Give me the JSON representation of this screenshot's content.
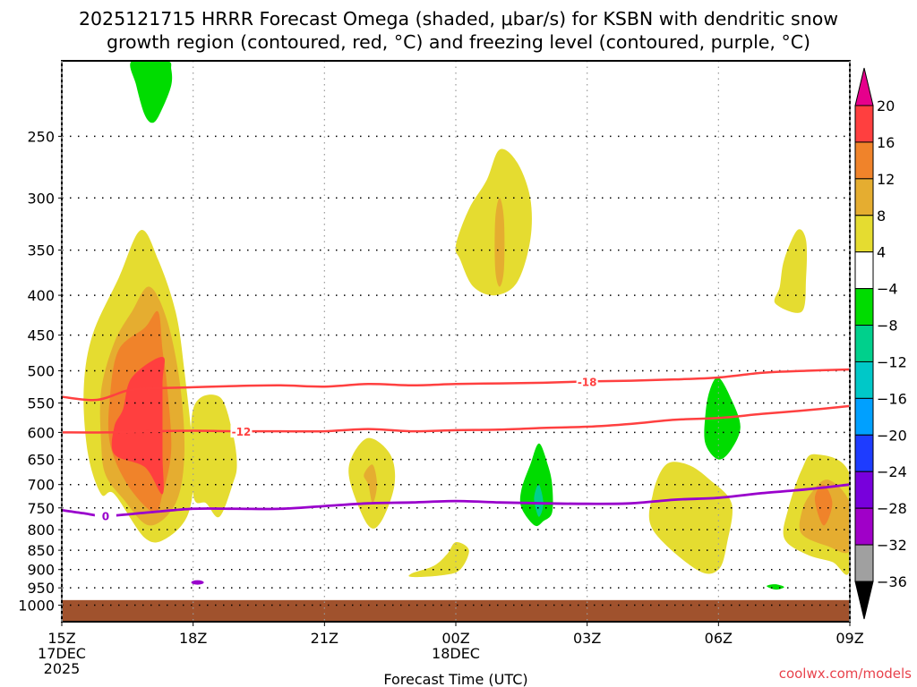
{
  "chart_data": {
    "type": "heatmap",
    "title_lines": [
      "2025121715 HRRR Forecast Omega (shaded, μbar/s) for KSBN with dendritic snow",
      "growth region (contoured, red, °C) and freezing level (contoured, purple, °C)"
    ],
    "xlabel": "Forecast Time (UTC)",
    "ylabel": "",
    "credit": "coolwx.com/models",
    "x_range_hours": [
      0,
      18
    ],
    "x_ticks": [
      {
        "hour": 0,
        "lines": [
          "15Z",
          "17DEC",
          "2025"
        ]
      },
      {
        "hour": 3,
        "lines": [
          "18Z"
        ]
      },
      {
        "hour": 6,
        "lines": [
          "21Z"
        ]
      },
      {
        "hour": 9,
        "lines": [
          "00Z",
          "18DEC"
        ]
      },
      {
        "hour": 12,
        "lines": [
          "03Z"
        ]
      },
      {
        "hour": 15,
        "lines": [
          "06Z"
        ]
      },
      {
        "hour": 18,
        "lines": [
          "09Z"
        ]
      }
    ],
    "y_axis": "pressure (mb), log-scaled, inverted",
    "y_range": [
      200,
      1050
    ],
    "y_ticks": [
      250,
      300,
      350,
      400,
      450,
      500,
      550,
      600,
      650,
      700,
      750,
      800,
      850,
      900,
      950,
      1000
    ],
    "grid": true,
    "colorbar": {
      "placement": "right",
      "levels": [
        20,
        16,
        12,
        8,
        4,
        -4,
        -8,
        -12,
        -16,
        -20,
        -24,
        -28,
        -32,
        -36
      ],
      "colors": [
        "#ff3f3f",
        "#f0832a",
        "#e5ad30",
        "#e5dc30",
        "#ffffff",
        "#00dc00",
        "#00d08c",
        "#00c8c8",
        "#00a0ff",
        "#1e3cff",
        "#7800dc",
        "#a000c8",
        "#a0a0a0"
      ],
      "over_color": "#e6008c",
      "under_color": "#000000"
    },
    "omega_regions": [
      {
        "name": "main-updraft",
        "level_color": "#e5dc30",
        "points": [
          [
            1.2,
            720
          ],
          [
            1.9,
            820
          ],
          [
            2.4,
            820
          ],
          [
            2.9,
            760
          ],
          [
            3.0,
            650
          ],
          [
            2.8,
            500
          ],
          [
            2.6,
            420
          ],
          [
            2.2,
            360
          ],
          [
            1.8,
            330
          ],
          [
            1.3,
            380
          ],
          [
            0.7,
            450
          ],
          [
            0.5,
            530
          ],
          [
            0.6,
            640
          ],
          [
            0.9,
            720
          ]
        ]
      },
      {
        "name": "main-updraft",
        "level_color": "#e5dc30",
        "points": [
          [
            3.0,
            560
          ],
          [
            3.6,
            540
          ],
          [
            3.9,
            600
          ],
          [
            4.0,
            660
          ],
          [
            3.9,
            700
          ],
          [
            3.6,
            770
          ],
          [
            3.3,
            740
          ],
          [
            3.0,
            720
          ]
        ]
      },
      {
        "name": "main-updraft",
        "level_color": "#e5ad30",
        "points": [
          [
            1.4,
            730
          ],
          [
            2.0,
            790
          ],
          [
            2.6,
            740
          ],
          [
            2.8,
            640
          ],
          [
            2.7,
            520
          ],
          [
            2.4,
            430
          ],
          [
            2.0,
            390
          ],
          [
            1.6,
            420
          ],
          [
            1.2,
            460
          ],
          [
            0.9,
            530
          ],
          [
            0.9,
            620
          ],
          [
            1.0,
            680
          ]
        ]
      },
      {
        "name": "main-updraft",
        "level_color": "#f0832a",
        "points": [
          [
            1.5,
            700
          ],
          [
            2.1,
            760
          ],
          [
            2.3,
            720
          ],
          [
            2.5,
            630
          ],
          [
            2.4,
            520
          ],
          [
            2.3,
            470
          ],
          [
            2.2,
            420
          ],
          [
            1.9,
            440
          ],
          [
            1.3,
            470
          ],
          [
            1.1,
            540
          ],
          [
            1.1,
            620
          ]
        ]
      },
      {
        "name": "main-updraft",
        "level_color": "#ff3f3f",
        "points": [
          [
            1.2,
            640
          ],
          [
            1.9,
            665
          ],
          [
            2.3,
            720
          ],
          [
            2.3,
            640
          ],
          [
            2.3,
            520
          ],
          [
            2.3,
            480
          ],
          [
            1.6,
            510
          ],
          [
            1.4,
            560
          ],
          [
            1.2,
            590
          ]
        ]
      },
      {
        "name": "top-green",
        "level_color": "#00dc00",
        "points": [
          [
            1.6,
            200
          ],
          [
            2.4,
            200
          ],
          [
            2.5,
            205
          ],
          [
            2.5,
            215
          ],
          [
            2.3,
            230
          ],
          [
            2.1,
            240
          ],
          [
            1.9,
            235
          ],
          [
            1.7,
            215
          ]
        ]
      },
      {
        "name": "mid-upper-yellow",
        "level_color": "#e5dc30",
        "points": [
          [
            9.1,
            360
          ],
          [
            9.4,
            390
          ],
          [
            9.9,
            400
          ],
          [
            10.4,
            385
          ],
          [
            10.7,
            340
          ],
          [
            10.7,
            300
          ],
          [
            10.4,
            270
          ],
          [
            10.0,
            260
          ],
          [
            9.7,
            285
          ],
          [
            9.3,
            310
          ],
          [
            9.0,
            345
          ]
        ]
      },
      {
        "name": "mid-upper-orange",
        "level_color": "#e5ad30",
        "points": [
          [
            9.9,
            370
          ],
          [
            10.0,
            390
          ],
          [
            10.1,
            370
          ],
          [
            10.1,
            320
          ],
          [
            10.0,
            300
          ],
          [
            9.9,
            320
          ]
        ]
      },
      {
        "name": "yellow-21z",
        "level_color": "#e5dc30",
        "points": [
          [
            6.6,
            700
          ],
          [
            7.0,
            790
          ],
          [
            7.3,
            780
          ],
          [
            7.6,
            700
          ],
          [
            7.5,
            640
          ],
          [
            7.0,
            610
          ],
          [
            6.6,
            650
          ]
        ]
      },
      {
        "name": "orange-21z",
        "level_color": "#e5ad30",
        "points": [
          [
            7.0,
            700
          ],
          [
            7.1,
            740
          ],
          [
            7.2,
            700
          ],
          [
            7.1,
            660
          ],
          [
            6.9,
            680
          ]
        ]
      },
      {
        "name": "yellow-low",
        "level_color": "#e5dc30",
        "points": [
          [
            8.0,
            920
          ],
          [
            8.7,
            915
          ],
          [
            9.1,
            900
          ],
          [
            9.3,
            850
          ],
          [
            9.0,
            830
          ],
          [
            8.8,
            860
          ],
          [
            8.5,
            890
          ],
          [
            8.0,
            910
          ]
        ]
      },
      {
        "name": "green-00z",
        "level_color": "#00dc00",
        "points": [
          [
            10.5,
            750
          ],
          [
            10.8,
            790
          ],
          [
            11.0,
            780
          ],
          [
            11.2,
            760
          ],
          [
            11.2,
            700
          ],
          [
            11.1,
            660
          ],
          [
            10.9,
            620
          ],
          [
            10.7,
            660
          ],
          [
            10.5,
            710
          ]
        ]
      },
      {
        "name": "teal-00z",
        "level_color": "#00d08c",
        "points": [
          [
            10.8,
            740
          ],
          [
            10.9,
            770
          ],
          [
            11.0,
            740
          ],
          [
            10.9,
            700
          ],
          [
            10.8,
            720
          ]
        ]
      },
      {
        "name": "green-06z",
        "level_color": "#00dc00",
        "points": [
          [
            15.0,
            510
          ],
          [
            15.3,
            545
          ],
          [
            15.5,
            590
          ],
          [
            15.3,
            630
          ],
          [
            15.0,
            650
          ],
          [
            14.7,
            620
          ],
          [
            14.7,
            570
          ],
          [
            14.8,
            530
          ]
        ]
      },
      {
        "name": "yellow-04z",
        "level_color": "#e5dc30",
        "points": [
          [
            13.5,
            800
          ],
          [
            14.5,
            900
          ],
          [
            15.0,
            900
          ],
          [
            15.2,
            830
          ],
          [
            15.3,
            740
          ],
          [
            14.8,
            690
          ],
          [
            14.3,
            660
          ],
          [
            13.8,
            660
          ],
          [
            13.5,
            720
          ]
        ]
      },
      {
        "name": "yellow-08z",
        "level_color": "#e5dc30",
        "points": [
          [
            16.5,
            820
          ],
          [
            17.0,
            860
          ],
          [
            17.6,
            880
          ],
          [
            18.0,
            900
          ],
          [
            18.0,
            680
          ],
          [
            17.2,
            640
          ],
          [
            16.9,
            670
          ],
          [
            16.6,
            750
          ]
        ]
      },
      {
        "name": "orange-08z",
        "level_color": "#e5ad30",
        "points": [
          [
            16.9,
            810
          ],
          [
            17.5,
            840
          ],
          [
            18.0,
            850
          ],
          [
            18.0,
            740
          ],
          [
            17.5,
            690
          ],
          [
            17.1,
            720
          ],
          [
            16.9,
            760
          ]
        ]
      },
      {
        "name": "deep-orange-08z",
        "level_color": "#f0832a",
        "points": [
          [
            17.2,
            730
          ],
          [
            17.4,
            790
          ],
          [
            17.6,
            740
          ],
          [
            17.4,
            700
          ]
        ]
      },
      {
        "name": "yellow-upper-08z",
        "level_color": "#e5dc30",
        "points": [
          [
            16.3,
            410
          ],
          [
            16.9,
            420
          ],
          [
            17.0,
            380
          ],
          [
            17.0,
            340
          ],
          [
            16.8,
            330
          ],
          [
            16.5,
            360
          ],
          [
            16.4,
            390
          ]
        ]
      },
      {
        "name": "green-small-07z",
        "level_color": "#00dc00",
        "points": [
          [
            16.1,
            945
          ],
          [
            16.3,
            940
          ],
          [
            16.5,
            948
          ],
          [
            16.3,
            955
          ]
        ]
      }
    ],
    "ground": {
      "color": "#a0522d",
      "pressure_top": 985
    },
    "dgz_contours": [
      {
        "label": "-12",
        "color": "#ff4040",
        "label_at_hour": 4.1,
        "points": [
          [
            0,
            600
          ],
          [
            1,
            600
          ],
          [
            2,
            598
          ],
          [
            3,
            597
          ],
          [
            4,
            598
          ],
          [
            5,
            598
          ],
          [
            6,
            598
          ],
          [
            7,
            594
          ],
          [
            8,
            598
          ],
          [
            9,
            596
          ],
          [
            10,
            595
          ],
          [
            11,
            592
          ],
          [
            12,
            590
          ],
          [
            13,
            585
          ],
          [
            14,
            578
          ],
          [
            15,
            575
          ],
          [
            16,
            568
          ],
          [
            17,
            562
          ],
          [
            18,
            555
          ]
        ]
      },
      {
        "label": "-18",
        "color": "#ff4040",
        "label_at_hour": 12.0,
        "points": [
          [
            0,
            540
          ],
          [
            0.8,
            545
          ],
          [
            1.5,
            530
          ],
          [
            2,
            527
          ],
          [
            3,
            525
          ],
          [
            4,
            523
          ],
          [
            5,
            522
          ],
          [
            6,
            524
          ],
          [
            7,
            520
          ],
          [
            8,
            522
          ],
          [
            9,
            520
          ],
          [
            10,
            519
          ],
          [
            11,
            518
          ],
          [
            12,
            516
          ],
          [
            13,
            515
          ],
          [
            14,
            513
          ],
          [
            15,
            510
          ],
          [
            16,
            503
          ],
          [
            17,
            500
          ],
          [
            18,
            498
          ]
        ]
      }
    ],
    "freezing_level": {
      "label": "0",
      "color": "#9900cc",
      "label_at_hour": 1.0,
      "points": [
        [
          0,
          755
        ],
        [
          0.5,
          762
        ],
        [
          1,
          768
        ],
        [
          2,
          760
        ],
        [
          3,
          752
        ],
        [
          4,
          752
        ],
        [
          5,
          752
        ],
        [
          6,
          746
        ],
        [
          7,
          740
        ],
        [
          8,
          738
        ],
        [
          9,
          735
        ],
        [
          10,
          738
        ],
        [
          11,
          740
        ],
        [
          12,
          741
        ],
        [
          13,
          740
        ],
        [
          14,
          732
        ],
        [
          15,
          728
        ],
        [
          16,
          718
        ],
        [
          17,
          710
        ],
        [
          18,
          700
        ]
      ]
    },
    "freezing_blip": {
      "hour": 3.1,
      "pressure": 935
    }
  }
}
